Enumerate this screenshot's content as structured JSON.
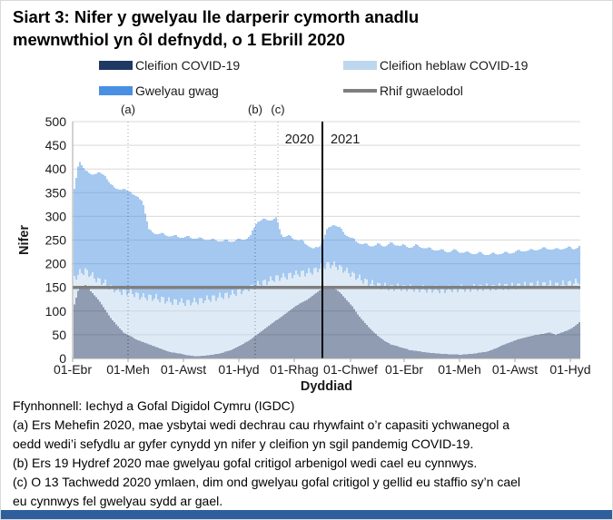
{
  "title": {
    "line1": "Siart 3: Nifer y gwelyau lle darperir cymorth anadlu",
    "line2": "mewnwthiol yn ôl defnydd, o 1 Ebrill 2020"
  },
  "legend": {
    "items": [
      {
        "label": "Cleifion COVID-19",
        "color": "#1f3864",
        "swatch": "bar"
      },
      {
        "label": "Cleifion heblaw COVID-19",
        "color": "#bdd7ee",
        "swatch": "bar"
      },
      {
        "label": "Gwelyau gwag",
        "color": "#4a90e2",
        "swatch": "bar"
      },
      {
        "label": "Rhif gwaelodol",
        "color": "#7f7f7f",
        "swatch": "line"
      }
    ]
  },
  "chart_data": {
    "type": "bar",
    "stacked": true,
    "xlabel": "Dyddiad",
    "ylabel": "Nifer",
    "ylim": [
      0,
      500
    ],
    "ytick_step": 50,
    "grid_color": "#d9d9d9",
    "axis_color": "#a6a6a6",
    "annotation_line_color": "#a6a6a6",
    "x_range": {
      "start": "2020-04-01",
      "end": "2021-10-12"
    },
    "x_ticks": [
      {
        "date": "2020-04-01",
        "label": "01-Ebr"
      },
      {
        "date": "2020-06-01",
        "label": "01-Meh"
      },
      {
        "date": "2020-08-01",
        "label": "01-Awst"
      },
      {
        "date": "2020-10-01",
        "label": "01-Hyd"
      },
      {
        "date": "2020-12-01",
        "label": "01-Rhag"
      },
      {
        "date": "2021-02-01",
        "label": "01-Chwef"
      },
      {
        "date": "2021-04-01",
        "label": "01-Ebr"
      },
      {
        "date": "2021-06-01",
        "label": "01-Meh"
      },
      {
        "date": "2021-08-01",
        "label": "01-Awst"
      },
      {
        "date": "2021-10-01",
        "label": "01-Hyd"
      }
    ],
    "baseline": {
      "label": "Rhif gwaelodol",
      "value": 150,
      "color": "#7f7f7f"
    },
    "year_divider": {
      "date": "2021-01-01",
      "left_label": "2020",
      "right_label": "2021",
      "color": "#000000"
    },
    "annotations": [
      {
        "key": "(a)",
        "date": "2020-06-01"
      },
      {
        "key": "(b)",
        "date": "2020-10-19"
      },
      {
        "key": "(c)",
        "date": "2020-11-13"
      }
    ],
    "sampling": "weekly values estimated from daily bars",
    "anchor_start": "2020-04-01",
    "anchor_step_days": 7,
    "series": [
      {
        "name": "Cleifion COVID-19",
        "color": "#1f3864",
        "values": [
          100,
          150,
          155,
          140,
          125,
          105,
          85,
          70,
          55,
          48,
          40,
          35,
          30,
          25,
          20,
          15,
          12,
          10,
          7,
          5,
          5,
          6,
          8,
          10,
          14,
          18,
          25,
          32,
          40,
          50,
          60,
          70,
          80,
          90,
          100,
          110,
          118,
          125,
          135,
          145,
          152,
          150,
          140,
          125,
          110,
          90,
          75,
          60,
          48,
          38,
          30,
          26,
          22,
          18,
          16,
          14,
          12,
          11,
          10,
          9,
          9,
          8,
          9,
          10,
          12,
          14,
          18,
          24,
          30,
          35,
          40,
          44,
          47,
          50,
          52,
          55,
          50,
          55,
          60,
          68,
          80
        ]
      },
      {
        "name": "Cleifion heblaw COVID-19",
        "color": "#bdd7ee",
        "values": [
          65,
          30,
          30,
          35,
          40,
          55,
          65,
          75,
          85,
          92,
          95,
          95,
          100,
          103,
          105,
          107,
          108,
          110,
          111,
          115,
          117,
          119,
          120,
          120,
          119,
          118,
          115,
          113,
          110,
          105,
          100,
          95,
          90,
          82,
          75,
          68,
          62,
          57,
          50,
          47,
          46,
          48,
          52,
          60,
          68,
          80,
          88,
          98,
          107,
          114,
          120,
          124,
          128,
          130,
          132,
          133,
          134,
          135,
          135,
          137,
          138,
          140,
          139,
          139,
          138,
          136,
          132,
          127,
          122,
          117,
          113,
          110,
          108,
          106,
          104,
          102,
          105,
          102,
          98,
          92,
          85
        ]
      },
      {
        "name": "Gwelyau gwag",
        "color": "#4a90e2",
        "values": [
          165,
          240,
          210,
          215,
          225,
          230,
          215,
          215,
          215,
          215,
          205,
          205,
          140,
          137,
          137,
          138,
          138,
          137,
          138,
          135,
          131,
          127,
          122,
          119,
          115,
          112,
          110,
          107,
          108,
          135,
          132,
          128,
          125,
          86,
          83,
          74,
          68,
          58,
          45,
          48,
          72,
          87,
          83,
          77,
          74,
          75,
          77,
          80,
          85,
          86,
          92,
          90,
          88,
          87,
          90,
          88,
          86,
          84,
          83,
          80,
          81,
          77,
          75,
          73,
          72,
          70,
          70,
          71,
          70,
          72,
          73,
          74,
          73,
          74,
          76,
          75,
          75,
          75,
          76,
          72,
          75
        ]
      }
    ]
  },
  "footer": {
    "lines": [
      "Ffynhonnell: Iechyd a Gofal Digidol Cymru (IGDC)",
      "(a) Ers Mehefin 2020, mae ysbytai wedi dechrau cau rhywfaint o’r capasiti ychwanegol a",
      "oedd wedi’i sefydlu ar gyfer cynydd yn nifer y cleifion yn sgil pandemig COVID-19.",
      "(b) Ers 19 Hydref 2020 mae gwelyau gofal critigol arbenigol wedi cael eu cynnwys.",
      "(c) O 13 Tachwedd 2020 ymlaen, dim ond gwelyau gofal critigol y gellid eu staffio sy’n cael",
      "eu cynnwys fel gwelyau sydd ar gael."
    ]
  },
  "bottom_banner": {
    "color": "#2e5f9c"
  }
}
